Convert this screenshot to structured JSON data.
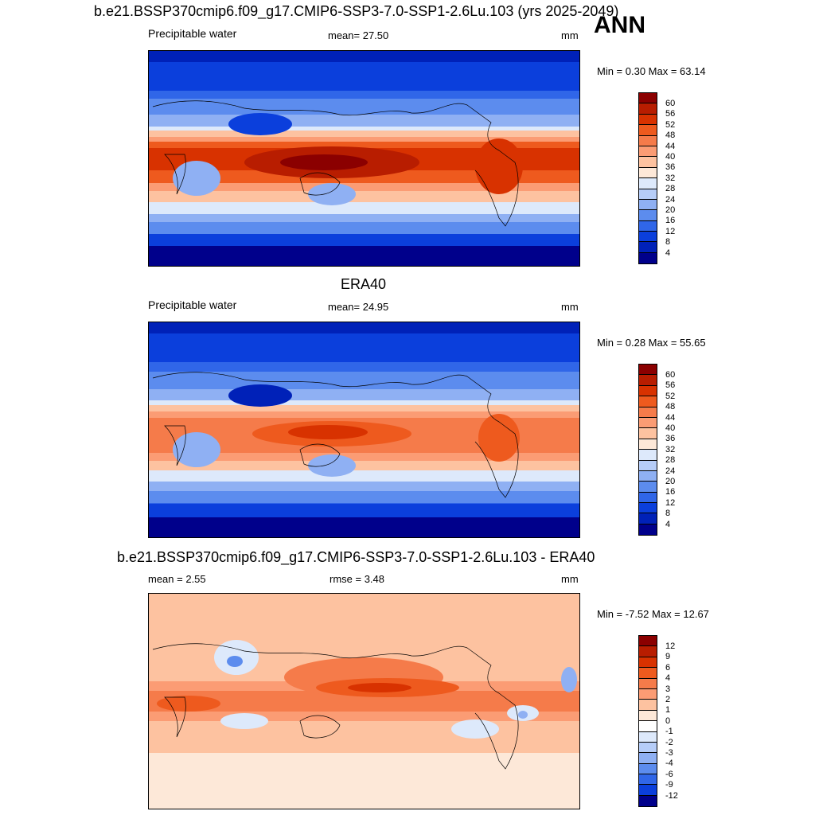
{
  "header": {
    "title": "b.e21.BSSP370cmip6.f09_g17.CMIP6-SSP3-7.0-SSP1-2.6Lu.103 (yrs 2025-2049)",
    "season": "ANN"
  },
  "panels": [
    {
      "variable": "Precipitable water",
      "mean_label": "mean=  27.50",
      "units": "mm",
      "minmax": "Min =   0.30 Max =  63.14",
      "colorbar": {
        "ticks": [
          "60",
          "56",
          "52",
          "48",
          "44",
          "40",
          "36",
          "32",
          "28",
          "24",
          "20",
          "16",
          "12",
          "8",
          "4"
        ],
        "colors": [
          "#8b0000",
          "#b81d00",
          "#d83200",
          "#ee5a1e",
          "#f57b4a",
          "#fb9c74",
          "#fdc2a0",
          "#fde8d8",
          "#dde9fb",
          "#b6cdf8",
          "#8fb0f3",
          "#5c8cee",
          "#3066e8",
          "#0b3fdc",
          "#0021b8",
          "#00008b"
        ]
      }
    },
    {
      "title": "ERA40",
      "variable": "Precipitable water",
      "mean_label": "mean=  24.95",
      "units": "mm",
      "minmax": "Min =   0.28 Max =  55.65",
      "colorbar": {
        "ticks": [
          "60",
          "56",
          "52",
          "48",
          "44",
          "40",
          "36",
          "32",
          "28",
          "24",
          "20",
          "16",
          "12",
          "8",
          "4"
        ],
        "colors": [
          "#8b0000",
          "#b81d00",
          "#d83200",
          "#ee5a1e",
          "#f57b4a",
          "#fb9c74",
          "#fdc2a0",
          "#fde8d8",
          "#dde9fb",
          "#b6cdf8",
          "#8fb0f3",
          "#5c8cee",
          "#3066e8",
          "#0b3fdc",
          "#0021b8",
          "#00008b"
        ]
      }
    },
    {
      "title": "b.e21.BSSP370cmip6.f09_g17.CMIP6-SSP3-7.0-SSP1-2.6Lu.103 - ERA40",
      "mean_label": "mean =   2.55",
      "rmse_label": "rmse =   3.48",
      "units": "mm",
      "minmax": "Min =  -7.52 Max =  12.67",
      "colorbar": {
        "ticks": [
          "12",
          "9",
          "6",
          "4",
          "3",
          "2",
          "1",
          "0",
          "-1",
          "-2",
          "-3",
          "-4",
          "-6",
          "-9",
          "-12"
        ],
        "colors": [
          "#8b0000",
          "#b81d00",
          "#d83200",
          "#ee5a1e",
          "#f57b4a",
          "#fb9c74",
          "#fdc2a0",
          "#fde8d8",
          "#ffffff",
          "#dde9fb",
          "#b6cdf8",
          "#8fb0f3",
          "#5c8cee",
          "#3066e8",
          "#0b3fdc",
          "#00008b"
        ]
      }
    }
  ]
}
